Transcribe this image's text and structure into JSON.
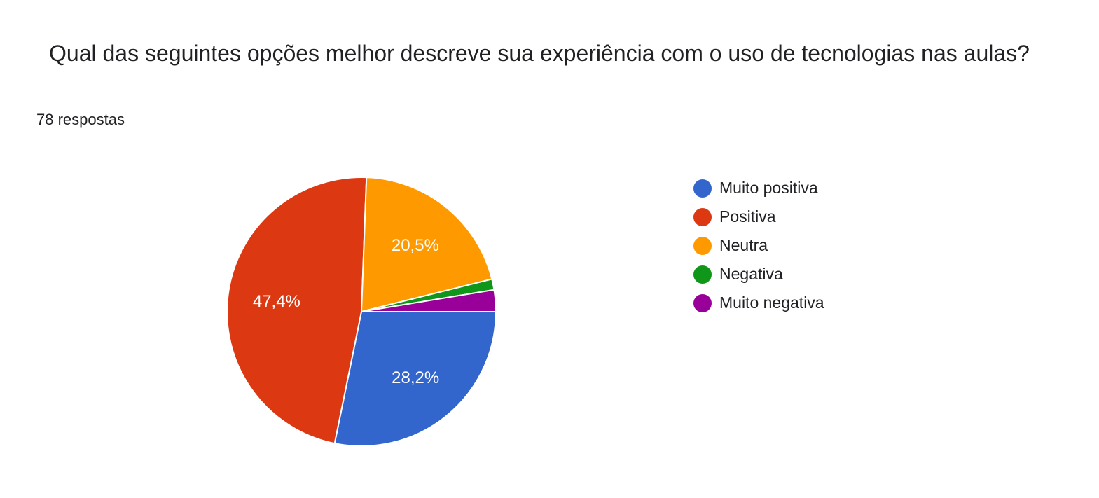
{
  "header": {
    "title": "Qual das seguintes opções melhor descreve sua experiência com o uso de tecnologias nas aulas?",
    "response_count": "78 respostas"
  },
  "chart_data": {
    "type": "pie",
    "categories": [
      "Muito positiva",
      "Positiva",
      "Neutra",
      "Negativa",
      "Muito negativa"
    ],
    "values": [
      28.2,
      47.4,
      20.5,
      1.3,
      2.6
    ],
    "value_labels": [
      "28,2%",
      "47,4%",
      "20,5%",
      "",
      ""
    ],
    "colors": [
      "#3366cc",
      "#dc3912",
      "#ff9900",
      "#109618",
      "#990099"
    ],
    "start_angle_note": "clockwise from 3 o'clock",
    "legend_position": "right",
    "title": "",
    "xlabel": "",
    "ylabel": ""
  }
}
